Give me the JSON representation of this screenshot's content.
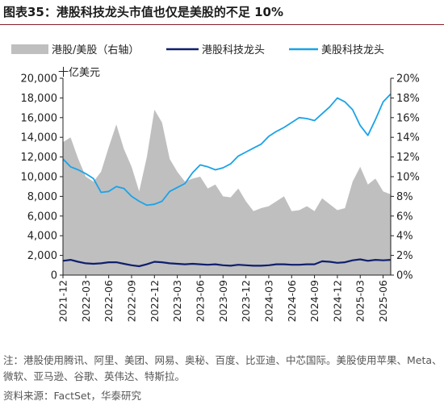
{
  "title_prefix": "图表35：",
  "title_text": "港股科技龙头市值也仅是美股的不足 10%",
  "note_text": "注：港股使用腾讯、阿里、美团、网易、奥秘、百度、比亚迪、中芯国际。美股使用苹果、Meta、微软、亚马逊、谷歌、英伟达、特斯拉。",
  "source_text": "资料来源：FactSet，华泰研究",
  "chart_data": {
    "type": "line",
    "left_axis_label": "十亿美元",
    "ylim_left": [
      0,
      20000
    ],
    "ylim_right": [
      0,
      20
    ],
    "left_ticks": [
      "0",
      "2,000",
      "4,000",
      "6,000",
      "8,000",
      "10,000",
      "12,000",
      "14,000",
      "16,000",
      "18,000",
      "20,000"
    ],
    "right_ticks": [
      "0%",
      "2%",
      "4%",
      "6%",
      "8%",
      "10%",
      "12%",
      "14%",
      "16%",
      "18%",
      "20%"
    ],
    "x_ticks": [
      "2021-12",
      "2022-03",
      "2022-06",
      "2022-09",
      "2022-12",
      "2023-03",
      "2023-06",
      "2023-09",
      "2023-12",
      "2024-03",
      "2024-06",
      "2024-09",
      "2024-12",
      "2025-03",
      "2025-06"
    ],
    "x": [
      "2021-12",
      "2022-01",
      "2022-02",
      "2022-03",
      "2022-04",
      "2022-05",
      "2022-06",
      "2022-07",
      "2022-08",
      "2022-09",
      "2022-10",
      "2022-11",
      "2022-12",
      "2023-01",
      "2023-02",
      "2023-03",
      "2023-04",
      "2023-05",
      "2023-06",
      "2023-07",
      "2023-08",
      "2023-09",
      "2023-10",
      "2023-11",
      "2023-12",
      "2024-01",
      "2024-02",
      "2024-03",
      "2024-04",
      "2024-05",
      "2024-06",
      "2024-07",
      "2024-08",
      "2024-09",
      "2024-10",
      "2024-11",
      "2024-12",
      "2025-01",
      "2025-02",
      "2025-03",
      "2025-04",
      "2025-05",
      "2025-06",
      "2025-07"
    ],
    "series": [
      {
        "name": "港股/美股（右轴）",
        "axis": "right",
        "style": "area",
        "color": "#bfbfbf",
        "values": [
          13.5,
          14.0,
          11.8,
          10.0,
          9.5,
          10.5,
          13.0,
          15.3,
          12.8,
          11.0,
          8.5,
          12.0,
          16.8,
          15.5,
          11.8,
          10.5,
          9.5,
          9.8,
          10.0,
          8.8,
          9.2,
          8.0,
          7.9,
          8.8,
          7.5,
          6.5,
          6.8,
          7.0,
          7.5,
          8.0,
          6.5,
          6.6,
          7.0,
          6.5,
          7.8,
          7.2,
          6.6,
          6.8,
          9.5,
          11.0,
          9.2,
          9.8,
          8.5,
          8.2
        ]
      },
      {
        "name": "港股科技龙头",
        "axis": "left",
        "style": "line",
        "color": "#0f1f6e",
        "values": [
          1450,
          1550,
          1350,
          1200,
          1150,
          1200,
          1300,
          1300,
          1150,
          1000,
          900,
          1100,
          1350,
          1300,
          1200,
          1150,
          1100,
          1150,
          1100,
          1050,
          1100,
          1000,
          950,
          1050,
          1000,
          950,
          950,
          1000,
          1100,
          1100,
          1050,
          1050,
          1100,
          1100,
          1400,
          1350,
          1250,
          1300,
          1500,
          1600,
          1450,
          1550,
          1500,
          1550
        ]
      },
      {
        "name": "美股科技龙头",
        "axis": "left",
        "style": "line",
        "color": "#1aa3e8",
        "values": [
          11800,
          11000,
          10700,
          10300,
          9800,
          8400,
          8500,
          9000,
          8800,
          8000,
          7500,
          7100,
          7200,
          7500,
          8500,
          8900,
          9300,
          10400,
          11200,
          11000,
          10700,
          10900,
          11300,
          12100,
          12500,
          12900,
          13300,
          14100,
          14600,
          15000,
          15500,
          16000,
          15900,
          15700,
          16400,
          17100,
          18000,
          17600,
          16800,
          15200,
          14200,
          15800,
          17600,
          18400
        ]
      }
    ]
  }
}
